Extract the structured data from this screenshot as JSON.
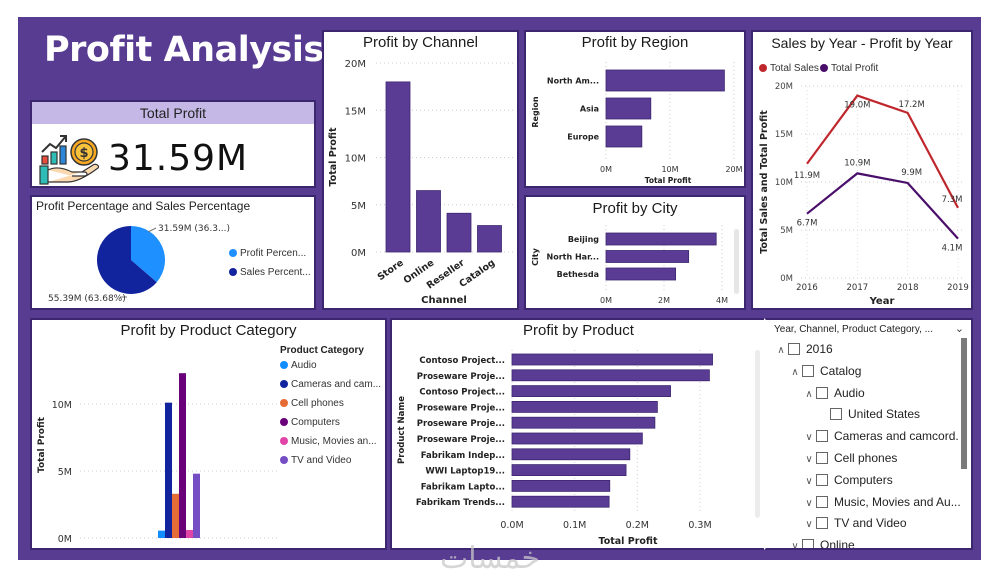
{
  "page": {
    "title": "Profit Analysis",
    "watermark": "خمسات"
  },
  "colors": {
    "background": "#573c92",
    "bar": "#5b3c95",
    "kpi_header": "#c5b8e6",
    "sales_line": "#c0272d",
    "profit_line": "#4a0f6b",
    "profit_pie": "#1e90ff",
    "sales_pie": "#12239e"
  },
  "kpi": {
    "label": "Total Profit",
    "value": "31.59M",
    "icon": "money-hand-growth-icon"
  },
  "pie": {
    "title": "Profit Percentage and Sales Percentage",
    "label_profit": "31.59M (36.3...)",
    "label_sales": "55.39M (63.68%)",
    "legend": [
      "Profit Percen...",
      "Sales Percent..."
    ]
  },
  "channel": {
    "title": "Profit by Channel",
    "yticks": [
      "20M",
      "15M",
      "10M",
      "5M",
      "0M"
    ],
    "ylabel": "Total Profit",
    "xlabel": "Channel"
  },
  "region": {
    "title": "Profit by Region",
    "xticks": [
      "0M",
      "10M",
      "20M"
    ],
    "ylabel": "Region",
    "xlabel": "Total Profit"
  },
  "city": {
    "title": "Profit by City",
    "xticks": [
      "0M",
      "2M",
      "4M"
    ],
    "ylabel": "City"
  },
  "yearly": {
    "title": "Sales by Year - Profit by Year",
    "legend": [
      "Total Sales",
      "Total Profit"
    ],
    "yticks": [
      "20M",
      "15M",
      "10M",
      "5M",
      "0M"
    ],
    "ylabel": "Total Sales and Total Profit",
    "xlabel": "Year"
  },
  "category": {
    "title": "Profit by Product Category",
    "legend_title": "Product Category",
    "yticks": [
      "10M",
      "5M",
      "0M"
    ],
    "ylabel": "Total Profit"
  },
  "product": {
    "title": "Profit by Product",
    "xticks": [
      "0.0M",
      "0.1M",
      "0.2M",
      "0.3M"
    ],
    "ylabel": "Product Name",
    "xlabel": "Total Profit"
  },
  "slicer": {
    "header": "Year, Channel, Product Category, ...",
    "rows": [
      {
        "label": "2016",
        "chevron": "up"
      },
      {
        "label": "Catalog",
        "chevron": "up"
      },
      {
        "label": "Audio",
        "chevron": "up"
      },
      {
        "label": "United States",
        "chevron": "none"
      },
      {
        "label": "Cameras and camcord.",
        "chevron": "down"
      },
      {
        "label": "Cell phones",
        "chevron": "down"
      },
      {
        "label": "Computers",
        "chevron": "down"
      },
      {
        "label": "Music, Movies and Au...",
        "chevron": "down"
      },
      {
        "label": "TV and Video",
        "chevron": "down"
      },
      {
        "label": "Online",
        "chevron": "down"
      }
    ]
  },
  "chart_data": [
    {
      "type": "pie",
      "title": "Profit Percentage and Sales Percentage",
      "labels": [
        "Profit Percentage",
        "Sales Percentage"
      ],
      "values": [
        31.59,
        55.39
      ],
      "percent": [
        36.32,
        63.68
      ],
      "units": "M",
      "legend_position": "right"
    },
    {
      "type": "bar",
      "title": "Profit by Channel",
      "categories": [
        "Store",
        "Online",
        "Reseller",
        "Catalog"
      ],
      "values": [
        18.0,
        6.5,
        4.1,
        2.8
      ],
      "xlabel": "Channel",
      "ylabel": "Total Profit",
      "ylim": [
        0,
        20
      ],
      "units": "M"
    },
    {
      "type": "bar",
      "orientation": "horizontal",
      "title": "Profit by Region",
      "categories": [
        "North Am...",
        "Asia",
        "Europe"
      ],
      "values": [
        18.5,
        7.0,
        5.6
      ],
      "xlabel": "Total Profit",
      "ylabel": "Region",
      "xlim": [
        0,
        20
      ],
      "units": "M"
    },
    {
      "type": "bar",
      "orientation": "horizontal",
      "title": "Profit by City",
      "categories": [
        "Beijing",
        "North Har...",
        "Bethesda"
      ],
      "values": [
        3.8,
        2.85,
        2.4
      ],
      "xlabel": "",
      "ylabel": "City",
      "xlim": [
        0,
        4
      ],
      "units": "M"
    },
    {
      "type": "line",
      "title": "Sales by Year - Profit by Year",
      "x": [
        "2016",
        "2017",
        "2018",
        "2019"
      ],
      "series": [
        {
          "name": "Total Sales",
          "values": [
            11.9,
            19.0,
            17.2,
            7.3
          ],
          "labels": [
            "11.9M",
            "19.0M",
            "17.2M",
            "7.3M"
          ]
        },
        {
          "name": "Total Profit",
          "values": [
            6.7,
            10.9,
            9.9,
            4.1
          ],
          "labels": [
            "6.7M",
            "10.9M",
            "9.9M",
            "4.1M"
          ]
        }
      ],
      "xlabel": "Year",
      "ylabel": "Total Sales and Total Profit",
      "ylim": [
        0,
        20
      ],
      "units": "M",
      "legend_position": "top-left",
      "grid": true
    },
    {
      "type": "bar",
      "title": "Profit by Product Category",
      "categories": [
        "Audio",
        "Cameras and cam...",
        "Cell phones",
        "Computers",
        "Music, Movies an...",
        "TV and Video"
      ],
      "values": [
        0.55,
        10.1,
        3.3,
        12.3,
        0.6,
        4.8
      ],
      "colors": [
        "#118dff",
        "#12239e",
        "#e66c37",
        "#6b007b",
        "#e044a7",
        "#744ec2"
      ],
      "ylabel": "Total Profit",
      "ylim": [
        0,
        12.5
      ],
      "units": "M",
      "legend_title": "Product Category",
      "legend_position": "right"
    },
    {
      "type": "bar",
      "orientation": "horizontal",
      "title": "Profit by Product",
      "categories": [
        "Contoso Project...",
        "Proseware Proje...",
        "Contoso Project...",
        "Proseware Proje...",
        "Proseware Proje...",
        "Proseware Proje...",
        "Fabrikam Indep...",
        "WWI Laptop19...",
        "Fabrikam Lapto...",
        "Fabrikam Trends..."
      ],
      "values": [
        0.32,
        0.315,
        0.253,
        0.232,
        0.228,
        0.208,
        0.188,
        0.182,
        0.156,
        0.155
      ],
      "xlabel": "Total Profit",
      "ylabel": "Product Name",
      "xlim": [
        0,
        0.32
      ],
      "units": "M"
    }
  ]
}
